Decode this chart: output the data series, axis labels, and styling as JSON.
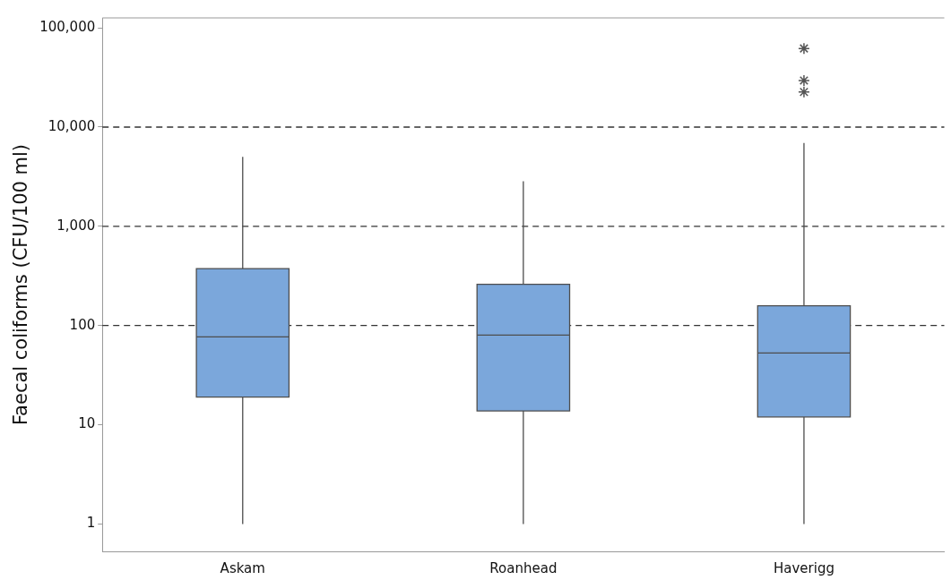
{
  "chart_data": {
    "type": "box",
    "ylabel": "Faecal coliforms (CFU/100 ml)",
    "categories": [
      "Askam",
      "Roanhead",
      "Haverigg"
    ],
    "color": "#7ba7db",
    "boxes": [
      {
        "low": 1,
        "q1": 19,
        "median": 77,
        "q3": 375,
        "high": 5000
      },
      {
        "low": 1,
        "q1": 13.8,
        "median": 80,
        "q3": 260,
        "high": 2850
      },
      {
        "low": 1,
        "q1": 12,
        "median": 53,
        "q3": 158,
        "high": 6900,
        "outliers": [
          62000,
          29500,
          22600
        ]
      }
    ],
    "log": true,
    "ylim": [
      0.53,
      126000
    ],
    "yticks": [
      1,
      10,
      {
        "value": 100,
        "label": "100"
      },
      {
        "value": 1000,
        "label": "1,000"
      },
      {
        "value": 10000,
        "label": "10,000"
      },
      {
        "value": 100000,
        "label": "100,000"
      }
    ],
    "ref_lines": [
      {
        "axis": "y",
        "value": 100,
        "line_style": "dashed"
      },
      {
        "axis": "y",
        "value": 1000,
        "line_style": "dashed"
      },
      {
        "axis": "y",
        "value": 10000,
        "line_style": "dashed"
      }
    ],
    "marker": "star",
    "legend": false
  }
}
